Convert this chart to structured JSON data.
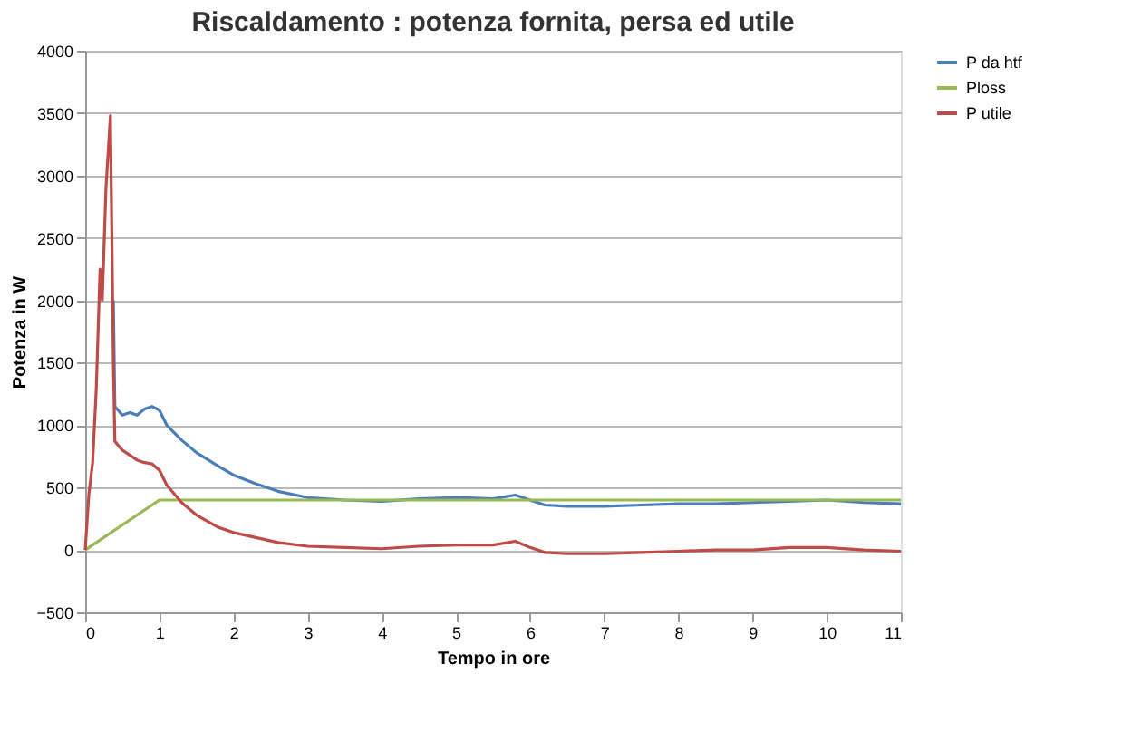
{
  "chart_data": {
    "type": "line",
    "title": "Riscaldamento : potenza fornita, persa ed utile",
    "xlabel": "Tempo in ore",
    "ylabel": "Potenza in W",
    "xlim": [
      0,
      11
    ],
    "xticks": [
      0,
      1,
      2,
      3,
      4,
      5,
      6,
      7,
      8,
      9,
      10,
      11
    ],
    "ylim": [
      -500,
      4000
    ],
    "yticks": [
      -500,
      0,
      500,
      1000,
      1500,
      2000,
      2500,
      3000,
      3500,
      4000
    ],
    "grid": "y",
    "legend": "right",
    "line_style": "solid",
    "marker": "none",
    "series": [
      {
        "name": "P da htf",
        "color": "#4a7ebb",
        "x": [
          0.38,
          0.4,
          0.5,
          0.6,
          0.7,
          0.8,
          0.9,
          1.0,
          1.1,
          1.3,
          1.5,
          1.8,
          2.0,
          2.3,
          2.6,
          3.0,
          3.5,
          4.0,
          4.5,
          5.0,
          5.5,
          5.8,
          6.0,
          6.2,
          6.5,
          7.0,
          7.5,
          8.0,
          8.5,
          9.0,
          9.5,
          10.0,
          10.5,
          11.0
        ],
        "values": [
          2000,
          1150,
          1080,
          1100,
          1080,
          1130,
          1150,
          1120,
          1000,
          880,
          780,
          670,
          600,
          530,
          470,
          420,
          400,
          390,
          410,
          420,
          410,
          440,
          400,
          360,
          350,
          350,
          360,
          370,
          370,
          380,
          390,
          400,
          380,
          370
        ]
      },
      {
        "name": "Ploss",
        "color": "#98b954",
        "x": [
          0,
          1.0,
          2.0,
          3.0,
          4.0,
          5.0,
          6.0,
          7.0,
          8.0,
          9.0,
          10.0,
          11.0
        ],
        "values": [
          0,
          400,
          400,
          400,
          400,
          400,
          400,
          400,
          400,
          400,
          400,
          400
        ]
      },
      {
        "name": "P utile",
        "color": "#be4b48",
        "x": [
          0,
          0.05,
          0.1,
          0.15,
          0.2,
          0.23,
          0.28,
          0.34,
          0.38,
          0.4,
          0.5,
          0.6,
          0.7,
          0.8,
          0.9,
          1.0,
          1.1,
          1.3,
          1.5,
          1.8,
          2.0,
          2.3,
          2.6,
          3.0,
          3.5,
          4.0,
          4.5,
          5.0,
          5.5,
          5.8,
          6.0,
          6.2,
          6.5,
          7.0,
          7.5,
          8.0,
          8.5,
          9.0,
          9.5,
          10.0,
          10.5,
          11.0
        ],
        "values": [
          0,
          450,
          700,
          1300,
          2250,
          2000,
          2900,
          3480,
          1500,
          870,
          800,
          760,
          720,
          700,
          690,
          640,
          520,
          380,
          280,
          180,
          140,
          100,
          60,
          30,
          20,
          10,
          30,
          40,
          40,
          70,
          20,
          -20,
          -30,
          -30,
          -20,
          -10,
          0,
          0,
          20,
          20,
          0,
          -10
        ]
      }
    ]
  }
}
